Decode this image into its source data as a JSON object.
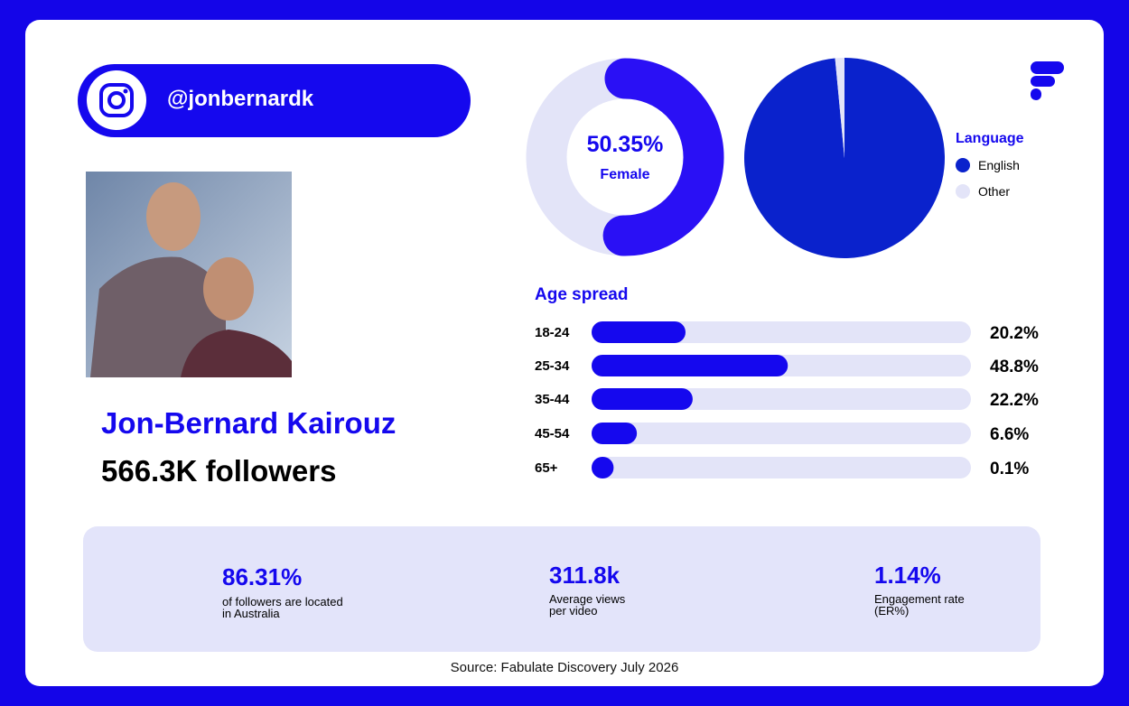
{
  "header": {
    "handle": "@jonbernardk"
  },
  "profile": {
    "name": "Jon-Bernard Kairouz",
    "followers": "566.3K followers"
  },
  "gender": {
    "value": 50.35,
    "value_label": "50.35%",
    "label": "Female",
    "color": "#2a10f5",
    "track_color": "#e3e4f8"
  },
  "language": {
    "title": "Language",
    "series": [
      {
        "name": "English",
        "value": 98.5,
        "color": "#0a22cc"
      },
      {
        "name": "Other",
        "value": 1.5,
        "color": "#e3e4f8"
      }
    ]
  },
  "age": {
    "title": "Age spread",
    "categories": [
      "18-24",
      "25-34",
      "35-44",
      "45-54",
      "65+"
    ],
    "values": [
      20.2,
      48.8,
      22.2,
      6.6,
      0.1
    ],
    "value_labels": [
      "20.2%",
      "48.8%",
      "22.2%",
      "6.6%",
      "0.1%"
    ],
    "xlim": [
      0,
      100
    ],
    "color": "#1508ee",
    "track_color": "#e3e4f8"
  },
  "stats": [
    {
      "value": "86.31%",
      "label": "of followers are located in Australia"
    },
    {
      "value": "311.8k",
      "label": "Average views per video"
    },
    {
      "value": "1.14%",
      "label": "Engagement rate (ER%)"
    }
  ],
  "source": "Source: Fabulate Discovery July 2026"
}
